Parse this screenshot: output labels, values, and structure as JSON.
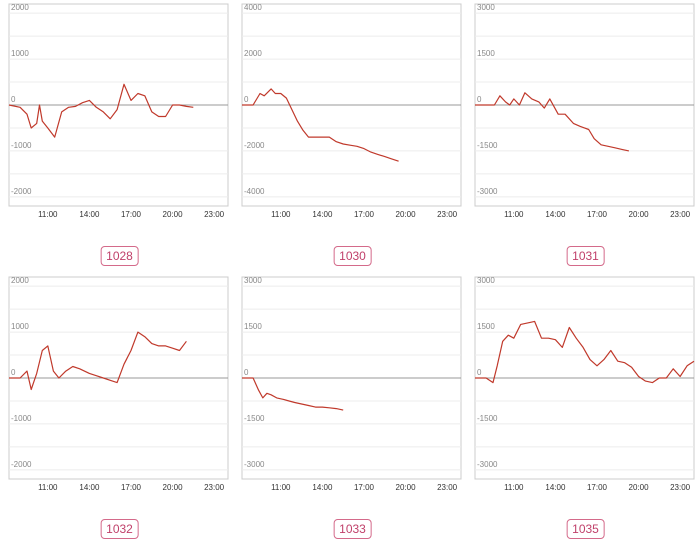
{
  "chart_data": [
    {
      "type": "line",
      "label": "1028",
      "ylim": [
        -2200,
        2200
      ],
      "yticks": [
        2000,
        1000,
        0,
        -1000,
        -2000
      ],
      "xticks": [
        "11:00",
        "14:00",
        "17:00",
        "20:00",
        "23:00"
      ],
      "xlim": [
        8.2,
        24
      ],
      "x": [
        8.2,
        9,
        9.5,
        9.8,
        10.2,
        10.4,
        10.6,
        11,
        11.5,
        12,
        12.5,
        13,
        13.5,
        14,
        14.5,
        15,
        15.5,
        16,
        16.5,
        17,
        17.5,
        18,
        18.5,
        19,
        19.5,
        20,
        20.5,
        21,
        21.5
      ],
      "values": [
        0,
        -50,
        -200,
        -500,
        -400,
        0,
        -350,
        -500,
        -700,
        -150,
        -50,
        -30,
        50,
        100,
        -50,
        -150,
        -300,
        -100,
        450,
        100,
        250,
        200,
        -150,
        -250,
        -250,
        0,
        0,
        -30,
        -50
      ],
      "color": "#c0392b"
    },
    {
      "type": "line",
      "label": "1030",
      "ylim": [
        -4400,
        4400
      ],
      "yticks": [
        4000,
        2000,
        0,
        -2000,
        -4000
      ],
      "xticks": [
        "11:00",
        "14:00",
        "17:00",
        "20:00",
        "23:00"
      ],
      "xlim": [
        8.2,
        24
      ],
      "x": [
        8.2,
        9,
        9.5,
        9.8,
        10.3,
        10.6,
        11,
        11.4,
        11.8,
        12.2,
        12.6,
        13,
        13.5,
        14,
        14.5,
        15,
        15.5,
        16,
        16.5,
        17,
        17.5,
        18,
        18.5,
        19,
        19.5
      ],
      "values": [
        0,
        0,
        500,
        400,
        700,
        500,
        500,
        300,
        -200,
        -700,
        -1100,
        -1400,
        -1400,
        -1400,
        -1400,
        -1600,
        -1700,
        -1750,
        -1800,
        -1900,
        -2050,
        -2150,
        -2250,
        -2350,
        -2450
      ],
      "color": "#c0392b"
    },
    {
      "type": "line",
      "label": "1031",
      "ylim": [
        -3300,
        3300
      ],
      "yticks": [
        3000,
        1500,
        0,
        -1500,
        -3000
      ],
      "xticks": [
        "11:00",
        "14:00",
        "17:00",
        "20:00",
        "23:00"
      ],
      "xlim": [
        8.2,
        24
      ],
      "x": [
        8.2,
        9,
        9.6,
        10,
        10.4,
        10.7,
        11,
        11.4,
        11.8,
        12.3,
        12.8,
        13.2,
        13.6,
        14.2,
        14.7,
        15.3,
        15.8,
        16.4,
        16.8,
        17.3,
        17.8,
        18.3,
        18.8,
        19.3
      ],
      "values": [
        0,
        0,
        0,
        300,
        100,
        0,
        200,
        0,
        400,
        200,
        100,
        -100,
        200,
        -300,
        -300,
        -600,
        -700,
        -800,
        -1100,
        -1300,
        -1350,
        -1400,
        -1450,
        -1500
      ],
      "color": "#c0392b"
    },
    {
      "type": "line",
      "label": "1032",
      "ylim": [
        -2200,
        2200
      ],
      "yticks": [
        2000,
        1000,
        0,
        -1000,
        -2000
      ],
      "xticks": [
        "11:00",
        "14:00",
        "17:00",
        "20:00",
        "23:00"
      ],
      "xlim": [
        8.2,
        24
      ],
      "x": [
        8.2,
        9,
        9.5,
        9.8,
        10.2,
        10.6,
        11,
        11.4,
        11.8,
        12.3,
        12.8,
        13.3,
        14,
        14.5,
        15,
        15.5,
        16,
        16.5,
        17,
        17.5,
        18,
        18.5,
        19,
        19.5,
        20,
        20.5,
        21
      ],
      "values": [
        0,
        0,
        150,
        -250,
        100,
        600,
        700,
        150,
        0,
        150,
        250,
        200,
        100,
        50,
        0,
        -50,
        -100,
        300,
        600,
        1000,
        900,
        750,
        700,
        700,
        650,
        600,
        800
      ],
      "color": "#c0392b"
    },
    {
      "type": "line",
      "label": "1033",
      "ylim": [
        -3300,
        3300
      ],
      "yticks": [
        3000,
        1500,
        0,
        -1500,
        -3000
      ],
      "xticks": [
        "11:00",
        "14:00",
        "17:00",
        "20:00",
        "23:00"
      ],
      "xlim": [
        8.2,
        24
      ],
      "x": [
        8.2,
        9,
        9.4,
        9.7,
        10,
        10.3,
        10.7,
        11.2,
        11.6,
        12,
        12.5,
        13,
        13.5,
        14,
        14.5,
        15,
        15.5
      ],
      "values": [
        0,
        0,
        -400,
        -650,
        -500,
        -550,
        -650,
        -700,
        -750,
        -800,
        -850,
        -900,
        -950,
        -950,
        -975,
        -1000,
        -1050
      ],
      "color": "#c0392b"
    },
    {
      "type": "line",
      "label": "1035",
      "ylim": [
        -3300,
        3300
      ],
      "yticks": [
        3000,
        1500,
        0,
        -1500,
        -3000
      ],
      "xticks": [
        "11:00",
        "14:00",
        "17:00",
        "20:00",
        "23:00"
      ],
      "xlim": [
        8.2,
        24
      ],
      "x": [
        8.2,
        9,
        9.5,
        9.8,
        10.2,
        10.6,
        11,
        11.5,
        12,
        12.5,
        13,
        13.5,
        14,
        14.5,
        15,
        15.5,
        16,
        16.5,
        17,
        17.5,
        18,
        18.5,
        19,
        19.5,
        20,
        20.5,
        21,
        21.5,
        22,
        22.5,
        23,
        23.5,
        24
      ],
      "values": [
        0,
        0,
        -150,
        400,
        1200,
        1400,
        1300,
        1750,
        1800,
        1850,
        1300,
        1300,
        1250,
        1000,
        1650,
        1300,
        1000,
        600,
        400,
        600,
        900,
        550,
        500,
        350,
        50,
        -100,
        -150,
        0,
        0,
        300,
        50,
        400,
        550
      ],
      "color": "#c0392b"
    }
  ]
}
